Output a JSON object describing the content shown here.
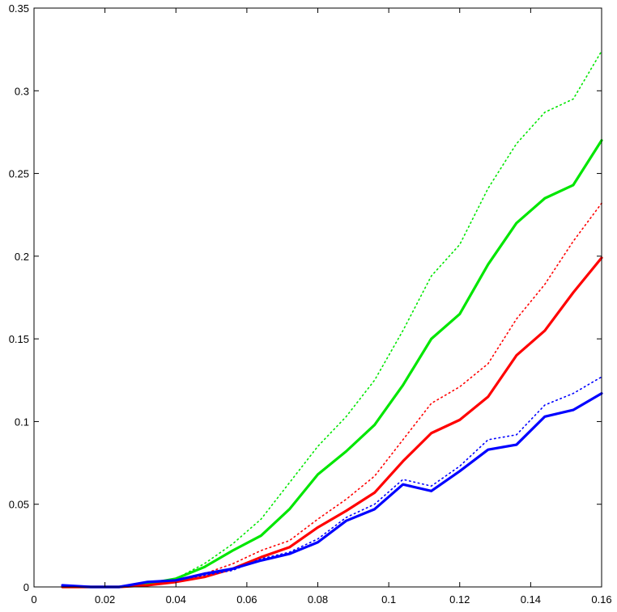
{
  "chart_data": {
    "type": "line",
    "title": "",
    "xlabel": "",
    "ylabel": "",
    "xlim": [
      0,
      0.16
    ],
    "ylim": [
      0,
      0.35
    ],
    "x_ticks": [
      0,
      0.02,
      0.04,
      0.06,
      0.08,
      0.1,
      0.12,
      0.14,
      0.16
    ],
    "y_ticks": [
      0,
      0.05,
      0.1,
      0.15,
      0.2,
      0.25,
      0.3,
      0.35
    ],
    "x_tick_labels": [
      "0",
      "0.02",
      "0.04",
      "0.06",
      "0.08",
      "0.1",
      "0.12",
      "0.14",
      "0.16"
    ],
    "y_tick_labels": [
      "0",
      "0.05",
      "0.1",
      "0.15",
      "0.2",
      "0.25",
      "0.3",
      "0.35"
    ],
    "grid": false,
    "legend": "none",
    "x": [
      0.008,
      0.016,
      0.024,
      0.032,
      0.04,
      0.048,
      0.056,
      0.064,
      0.072,
      0.08,
      0.088,
      0.096,
      0.104,
      0.112,
      0.12,
      0.128,
      0.136,
      0.144,
      0.152,
      0.16
    ],
    "series": [
      {
        "color": "#00e600",
        "style": "dotted",
        "values": [
          0.0,
          0.0,
          0.0,
          0.002,
          0.005,
          0.014,
          0.026,
          0.041,
          0.063,
          0.085,
          0.103,
          0.125,
          0.155,
          0.188,
          0.207,
          0.241,
          0.268,
          0.287,
          0.295,
          0.324
        ]
      },
      {
        "color": "#00e600",
        "style": "solid",
        "values": [
          0.0,
          0.0,
          0.0,
          0.002,
          0.005,
          0.012,
          0.022,
          0.031,
          0.047,
          0.068,
          0.082,
          0.098,
          0.122,
          0.15,
          0.165,
          0.195,
          0.22,
          0.235,
          0.243,
          0.27
        ]
      },
      {
        "color": "#ff0000",
        "style": "dotted",
        "values": [
          0.0,
          0.0,
          0.0,
          0.001,
          0.004,
          0.008,
          0.014,
          0.022,
          0.028,
          0.041,
          0.053,
          0.067,
          0.089,
          0.111,
          0.121,
          0.135,
          0.162,
          0.183,
          0.209,
          0.232
        ]
      },
      {
        "color": "#ff0000",
        "style": "solid",
        "values": [
          0.0,
          0.0,
          0.0,
          0.001,
          0.003,
          0.006,
          0.011,
          0.018,
          0.024,
          0.036,
          0.046,
          0.057,
          0.076,
          0.093,
          0.101,
          0.115,
          0.14,
          0.155,
          0.178,
          0.199
        ]
      },
      {
        "color": "#0000ff",
        "style": "dotted",
        "values": [
          0.001,
          0.0,
          0.0,
          0.003,
          0.004,
          0.007,
          0.01,
          0.017,
          0.021,
          0.029,
          0.042,
          0.05,
          0.065,
          0.061,
          0.073,
          0.089,
          0.092,
          0.11,
          0.117,
          0.127
        ]
      },
      {
        "color": "#0000ff",
        "style": "solid",
        "values": [
          0.001,
          0.0,
          0.0,
          0.003,
          0.004,
          0.008,
          0.011,
          0.016,
          0.02,
          0.027,
          0.04,
          0.047,
          0.062,
          0.058,
          0.07,
          0.083,
          0.086,
          0.103,
          0.107,
          0.117
        ]
      }
    ]
  }
}
